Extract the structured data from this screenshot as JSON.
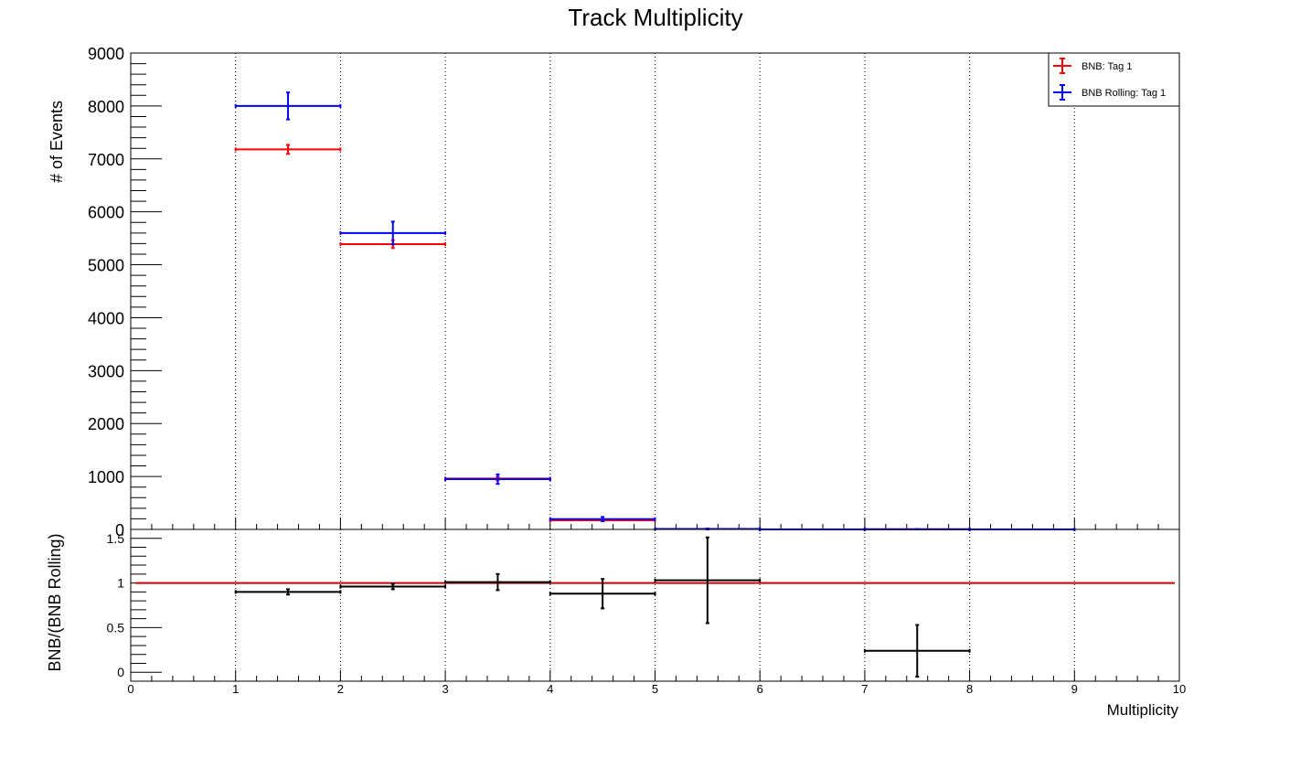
{
  "chart_data": [
    {
      "type": "histogram-errorbar",
      "title": "Track Multiplicity",
      "xlabel": "",
      "ylabel": "# of Events",
      "xlim": [
        0,
        10
      ],
      "ylim": [
        0,
        9000
      ],
      "x_ticks": [
        "0",
        "1",
        "2",
        "3",
        "4",
        "5",
        "6",
        "7",
        "8",
        "9",
        "10"
      ],
      "y_ticks": [
        "0",
        "1000",
        "2000",
        "3000",
        "4000",
        "5000",
        "6000",
        "7000",
        "8000",
        "9000"
      ],
      "grid": "vertical-dotted",
      "legend_position": "top-right",
      "series": [
        {
          "name": "BNB: Tag 1",
          "color": "#ff0000",
          "points": [
            {
              "x": 1.5,
              "y": 7180,
              "err": 85
            },
            {
              "x": 2.5,
              "y": 5390,
              "err": 75
            },
            {
              "x": 3.5,
              "y": 960,
              "err": 32
            },
            {
              "x": 4.5,
              "y": 170,
              "err": 13
            },
            {
              "x": 5.5,
              "y": 8,
              "err": 3
            },
            {
              "x": 6.5,
              "y": 1,
              "err": 1
            },
            {
              "x": 7.5,
              "y": 1,
              "err": 1
            },
            {
              "x": 8.5,
              "y": 0,
              "err": 0
            }
          ]
        },
        {
          "name": "BNB Rolling: Tag 1",
          "color": "#0000ff",
          "points": [
            {
              "x": 1.5,
              "y": 8000,
              "err": 255
            },
            {
              "x": 2.5,
              "y": 5600,
              "err": 215
            },
            {
              "x": 3.5,
              "y": 950,
              "err": 90
            },
            {
              "x": 4.5,
              "y": 195,
              "err": 40
            },
            {
              "x": 5.5,
              "y": 8,
              "err": 8
            },
            {
              "x": 6.5,
              "y": 0,
              "err": 0
            },
            {
              "x": 7.5,
              "y": 4,
              "err": 4
            },
            {
              "x": 8.5,
              "y": 0,
              "err": 0
            }
          ]
        }
      ]
    },
    {
      "type": "ratio-errorbar",
      "title": "",
      "xlabel": "Multiplicity",
      "ylabel": "BNB/(BNB Rolling)",
      "xlim": [
        0,
        10
      ],
      "ylim": [
        -0.1,
        1.6
      ],
      "x_ticks": [
        "0",
        "1",
        "2",
        "3",
        "4",
        "5",
        "6",
        "7",
        "8",
        "9",
        "10"
      ],
      "y_ticks": [
        "0",
        "0.5",
        "1",
        "1.5"
      ],
      "reference_line": 1.0,
      "reference_color": "#cc0000",
      "grid": "vertical-dotted",
      "series": [
        {
          "name": "",
          "color": "#000000",
          "points": [
            {
              "x": 1.5,
              "y": 0.9,
              "err": 0.03
            },
            {
              "x": 2.5,
              "y": 0.96,
              "err": 0.03
            },
            {
              "x": 3.5,
              "y": 1.01,
              "err": 0.09
            },
            {
              "x": 4.5,
              "y": 0.88,
              "err": 0.165
            },
            {
              "x": 5.5,
              "y": 1.03,
              "err": 0.48
            },
            {
              "x": 7.5,
              "y": 0.24,
              "err": 0.29
            }
          ]
        }
      ]
    }
  ]
}
